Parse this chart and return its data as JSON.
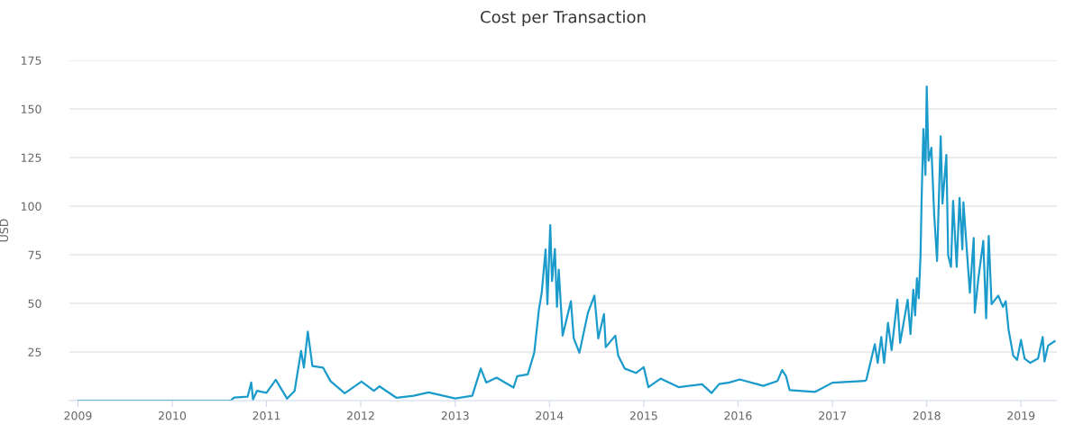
{
  "chart_data": {
    "type": "line",
    "title": "Cost per Transaction",
    "ylabel": "USD",
    "x": [
      "2009-01-03",
      "2010-08-15",
      "2010-08-29",
      "2010-10-20",
      "2010-11-03",
      "2010-11-10",
      "2010-11-25",
      "2011-01-01",
      "2011-02-06",
      "2011-03-22",
      "2011-04-20",
      "2011-05-15",
      "2011-05-26",
      "2011-06-10",
      "2011-06-28",
      "2011-08-08",
      "2011-09-06",
      "2011-10-31",
      "2012-01-04",
      "2012-02-21",
      "2012-03-14",
      "2012-05-19",
      "2012-07-24",
      "2012-09-20",
      "2013-01-01",
      "2013-03-08",
      "2013-04-10",
      "2013-05-01",
      "2013-06-10",
      "2013-08-15",
      "2013-08-29",
      "2013-10-09",
      "2013-11-03",
      "2013-11-21",
      "2013-12-02",
      "2013-12-17",
      "2013-12-24",
      "2014-01-04",
      "2014-01-11",
      "2014-01-22",
      "2014-01-30",
      "2014-02-06",
      "2014-02-21",
      "2014-03-25",
      "2014-04-05",
      "2014-04-27",
      "2014-05-30",
      "2014-06-24",
      "2014-07-09",
      "2014-07-31",
      "2014-08-07",
      "2014-09-13",
      "2014-09-24",
      "2014-10-19",
      "2014-12-02",
      "2015-01-01",
      "2015-01-19",
      "2015-03-07",
      "2015-05-16",
      "2015-08-15",
      "2015-09-21",
      "2015-10-20",
      "2015-11-29",
      "2016-01-08",
      "2016-04-08",
      "2016-06-02",
      "2016-06-20",
      "2016-07-05",
      "2016-07-19",
      "2016-10-26",
      "2017-01-01",
      "2017-05-05",
      "2017-05-12",
      "2017-06-14",
      "2017-06-25",
      "2017-07-09",
      "2017-07-20",
      "2017-08-04",
      "2017-08-18",
      "2017-09-09",
      "2017-09-20",
      "2017-10-19",
      "2017-10-30",
      "2017-11-10",
      "2017-11-17",
      "2017-11-24",
      "2017-12-01",
      "2017-12-08",
      "2017-12-12",
      "2017-12-19",
      "2017-12-27",
      "2018-01-01",
      "2018-01-08",
      "2018-01-19",
      "2018-01-30",
      "2018-02-10",
      "2018-02-24",
      "2018-03-03",
      "2018-03-18",
      "2018-03-25",
      "2018-04-05",
      "2018-04-13",
      "2018-04-27",
      "2018-05-08",
      "2018-05-19",
      "2018-05-23",
      "2018-06-17",
      "2018-07-02",
      "2018-07-06",
      "2018-07-20",
      "2018-08-08",
      "2018-08-19",
      "2018-08-29",
      "2018-09-09",
      "2018-10-05",
      "2018-10-23",
      "2018-11-03",
      "2018-11-14",
      "2018-12-02",
      "2018-12-17",
      "2019-01-01",
      "2019-01-15",
      "2019-02-06",
      "2019-03-08",
      "2019-03-26",
      "2019-04-02",
      "2019-04-16",
      "2019-05-11"
    ],
    "series": [
      {
        "color": "#1a9bcb",
        "values": [
          0,
          0,
          1.6,
          2,
          9.3,
          0.5,
          5,
          4,
          10.7,
          1,
          5,
          25.5,
          17,
          35.5,
          17.8,
          17,
          10,
          3.8,
          9.8,
          5,
          7.3,
          1.4,
          2.5,
          4.2,
          1.1,
          2.5,
          16.5,
          9.3,
          11.8,
          6.7,
          12.6,
          13.5,
          24.6,
          46.7,
          55.5,
          77.7,
          49.6,
          90.2,
          61.5,
          78,
          48.2,
          67.3,
          33.4,
          51.1,
          32,
          24.6,
          45.2,
          54,
          32,
          44.5,
          27.5,
          33.4,
          23.1,
          16.5,
          14.2,
          17.2,
          6.9,
          11.3,
          6.9,
          8.4,
          3.9,
          8.5,
          9.3,
          10.9,
          7.6,
          10.1,
          15.7,
          12.6,
          5.4,
          4.5,
          9.2,
          10.1,
          10.6,
          29,
          19.4,
          32.7,
          19.4,
          40,
          26,
          51.9,
          29.7,
          51.9,
          34.2,
          57,
          43.8,
          62.9,
          52.6,
          74.7,
          102.7,
          139.6,
          116,
          161.5,
          123.4,
          130,
          95.4,
          71.8,
          136,
          101.3,
          126.3,
          74.7,
          68.8,
          102.7,
          68.8,
          104.2,
          77.7,
          102,
          55.5,
          83.6,
          45.2,
          62.9,
          82.1,
          42.3,
          84.7,
          49.6,
          54,
          48.2,
          51.1,
          36.4,
          23.1,
          20.9,
          31.2,
          21.6,
          19.4,
          21.6,
          32.7,
          20.1,
          28.3,
          30.5
        ]
      }
    ],
    "xlim": [
      "2008-11-29",
      "2019-05-20"
    ],
    "xticks": [
      {
        "value": "2009-01-01",
        "label": "2009"
      },
      {
        "value": "2010-01-01",
        "label": "2010"
      },
      {
        "value": "2011-01-01",
        "label": "2011"
      },
      {
        "value": "2012-01-01",
        "label": "2012"
      },
      {
        "value": "2013-01-01",
        "label": "2013"
      },
      {
        "value": "2014-01-01",
        "label": "2014"
      },
      {
        "value": "2015-01-01",
        "label": "2015"
      },
      {
        "value": "2016-01-01",
        "label": "2016"
      },
      {
        "value": "2017-01-01",
        "label": "2017"
      },
      {
        "value": "2018-01-01",
        "label": "2018"
      },
      {
        "value": "2019-01-01",
        "label": "2019"
      }
    ],
    "ylim": [
      0,
      175
    ],
    "yticks": [
      25,
      50,
      75,
      100,
      125,
      150,
      175
    ],
    "grid": "y",
    "marker": "none",
    "line_style": "solid"
  }
}
